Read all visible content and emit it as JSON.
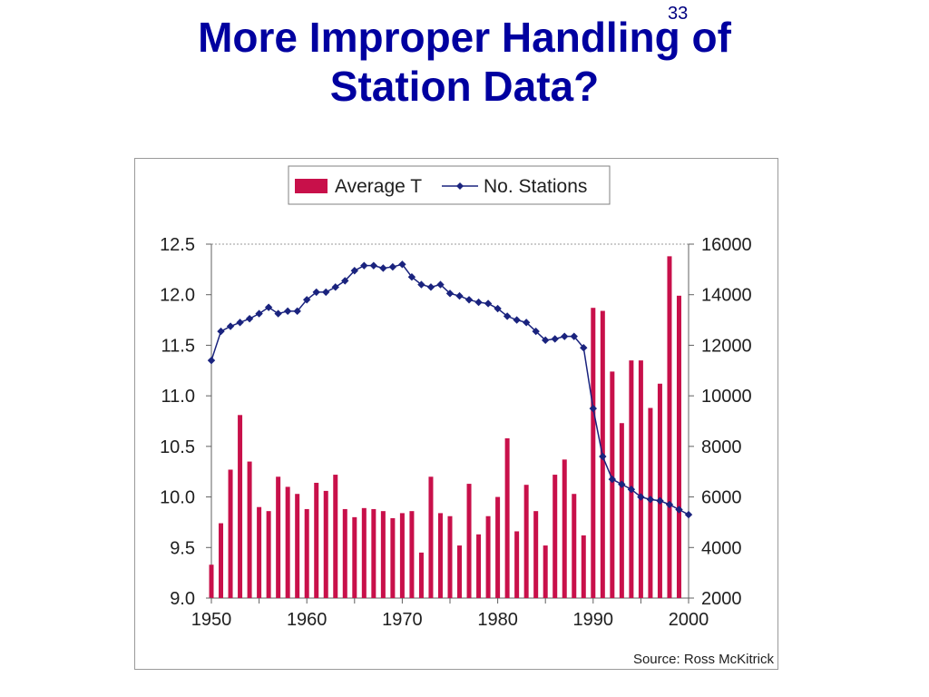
{
  "slide": {
    "number": "33",
    "title_line1": "More Improper Handling of",
    "title_line2": "Station Data?"
  },
  "chart_data": {
    "type": "bar",
    "x": [
      1950,
      1951,
      1952,
      1953,
      1954,
      1955,
      1956,
      1957,
      1958,
      1959,
      1960,
      1961,
      1962,
      1963,
      1964,
      1965,
      1966,
      1967,
      1968,
      1969,
      1970,
      1971,
      1972,
      1973,
      1974,
      1975,
      1976,
      1977,
      1978,
      1979,
      1980,
      1981,
      1982,
      1983,
      1984,
      1985,
      1986,
      1987,
      1988,
      1989,
      1990,
      1991,
      1992,
      1993,
      1994,
      1995,
      1996,
      1997,
      1998,
      1999,
      2000
    ],
    "series": [
      {
        "name": "Average T",
        "type": "bar",
        "axis": "left",
        "color": "#c8104a",
        "values": [
          9.33,
          9.74,
          10.27,
          10.81,
          10.35,
          9.9,
          9.86,
          10.2,
          10.1,
          10.03,
          9.88,
          10.14,
          10.06,
          10.22,
          9.88,
          9.8,
          9.89,
          9.88,
          9.86,
          9.79,
          9.84,
          9.86,
          9.45,
          10.2,
          9.84,
          9.81,
          9.52,
          10.13,
          9.63,
          9.81,
          10.0,
          10.58,
          9.66,
          10.12,
          9.86,
          9.52,
          10.22,
          10.37,
          10.03,
          9.62,
          11.87,
          11.84,
          11.24,
          10.73,
          11.35,
          11.35,
          10.88,
          11.12,
          12.38,
          11.99,
          null
        ]
      },
      {
        "name": "No. Stations",
        "type": "line",
        "axis": "right",
        "color": "#1a237e",
        "values": [
          11400,
          12550,
          12750,
          12900,
          13050,
          13250,
          13500,
          13250,
          13350,
          13350,
          13800,
          14100,
          14100,
          14300,
          14550,
          14950,
          15150,
          15150,
          15050,
          15100,
          15200,
          14700,
          14400,
          14300,
          14400,
          14050,
          13950,
          13800,
          13700,
          13650,
          13450,
          13150,
          13000,
          12900,
          12550,
          12200,
          12250,
          12350,
          12350,
          11900,
          9500,
          7600,
          6700,
          6500,
          6300,
          6000,
          5900,
          5850,
          5700,
          5500,
          5300
        ]
      }
    ],
    "legend_position": "top-center",
    "yaxis_left": {
      "min": 9.0,
      "max": 12.5,
      "ticks": [
        "12.5",
        "12.0",
        "11.5",
        "11.0",
        "10.5",
        "10.0",
        "9.5",
        "9.0"
      ],
      "tick_values": [
        12.5,
        12.0,
        11.5,
        11.0,
        10.5,
        10.0,
        9.5,
        9.0
      ]
    },
    "yaxis_right": {
      "min": 2000,
      "max": 16000,
      "ticks": [
        "16000",
        "14000",
        "12000",
        "10000",
        "8000",
        "6000",
        "4000",
        "2000"
      ],
      "tick_values": [
        16000,
        14000,
        12000,
        10000,
        8000,
        6000,
        4000,
        2000
      ]
    },
    "xaxis": {
      "min": 1950,
      "max": 2000,
      "ticks": [
        "1950",
        "1960",
        "1970",
        "1980",
        "1990",
        "2000"
      ],
      "tick_values": [
        1950,
        1960,
        1970,
        1980,
        1990,
        2000
      ]
    },
    "grid": false,
    "source": "Source: Ross McKitrick"
  }
}
